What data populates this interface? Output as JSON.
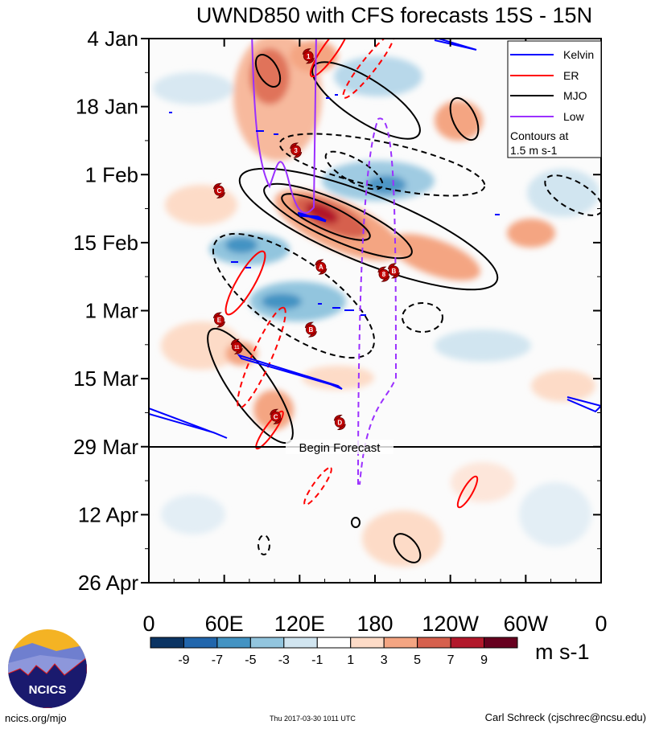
{
  "chart_data": {
    "type": "heatmap",
    "title": "UWND850 with CFS forecasts  15S - 15N",
    "xlabel": "",
    "ylabel": "",
    "x_ticks": [
      {
        "lon": 0,
        "label": "0"
      },
      {
        "lon": 60,
        "label": "60E"
      },
      {
        "lon": 120,
        "label": "120E"
      },
      {
        "lon": 180,
        "label": "180"
      },
      {
        "lon": 240,
        "label": "120W"
      },
      {
        "lon": 300,
        "label": "60W"
      },
      {
        "lon": 360,
        "label": "0"
      }
    ],
    "y_ticks": [
      {
        "day": 0,
        "label": "4 Jan"
      },
      {
        "day": 14,
        "label": "18 Jan"
      },
      {
        "day": 28,
        "label": "1 Feb"
      },
      {
        "day": 42,
        "label": "15 Feb"
      },
      {
        "day": 56,
        "label": "1 Mar"
      },
      {
        "day": 70,
        "label": "15 Mar"
      },
      {
        "day": 84,
        "label": "29 Mar"
      },
      {
        "day": 98,
        "label": "12 Apr"
      },
      {
        "day": 112,
        "label": "26 Apr"
      }
    ],
    "xlim": [
      0,
      360
    ],
    "ylim_days": [
      0,
      112
    ],
    "forecast_start_day": 84,
    "forecast_label": "Begin Forecast",
    "legend": {
      "placement": "top-right",
      "entries": [
        {
          "label": "Kelvin",
          "color": "#0000ff"
        },
        {
          "label": "ER",
          "color": "#ff0000"
        },
        {
          "label": "MJO",
          "color": "#000000"
        },
        {
          "label": "Low",
          "color": "#9b30ff"
        }
      ],
      "note_line1": "Contours at",
      "note_line2": "1.5 m s-1"
    },
    "colorbar": {
      "units": "m s-1",
      "labels": [
        "-9",
        "-7",
        "-5",
        "-3",
        "-1",
        "1",
        "3",
        "5",
        "7",
        "9"
      ],
      "colors": [
        "#0b3463",
        "#2166ac",
        "#4393c3",
        "#92c5de",
        "#d1e5f0",
        "#ffffff",
        "#fddbc7",
        "#f4a582",
        "#d6604d",
        "#b2182b",
        "#67001f"
      ]
    },
    "storms": [
      {
        "label": "1",
        "lon": 127,
        "day": 3.6
      },
      {
        "label": "3",
        "lon": 117,
        "day": 23
      },
      {
        "label": "C",
        "lon": 56,
        "day": 31.3
      },
      {
        "label": "A",
        "lon": 137,
        "day": 47
      },
      {
        "label": "8",
        "lon": 187,
        "day": 48.5
      },
      {
        "label": "B",
        "lon": 195,
        "day": 47.8
      },
      {
        "label": "E",
        "lon": 56,
        "day": 57.9
      },
      {
        "label": "11",
        "lon": 70,
        "day": 63.4
      },
      {
        "label": "B",
        "lon": 129,
        "day": 59.9
      },
      {
        "label": "C",
        "lon": 101,
        "day": 77.8
      },
      {
        "label": "D",
        "lon": 152,
        "day": 79
      }
    ]
  },
  "footer": {
    "logo_text": "NCICS",
    "site": "ncics.org/mjo",
    "timestamp": "Thu 2017-03-30 1011 UTC",
    "author": "Carl Schreck (cjschrec@ncsu.edu)"
  }
}
